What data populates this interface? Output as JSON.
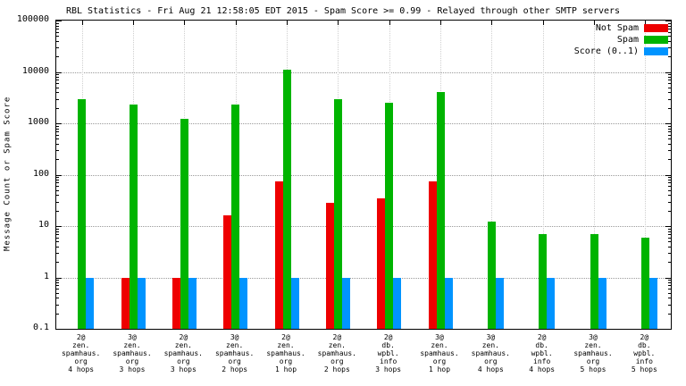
{
  "title": "RBL Statistics - Fri Aug 21 12:58:05 EDT 2015 - Spam Score >= 0.99 - Relayed through other SMTP servers",
  "ylabel": "Message Count or Spam Score",
  "legend": [
    {
      "label": "Not Spam",
      "color": "#ee0000"
    },
    {
      "label": "Spam",
      "color": "#00b400"
    },
    {
      "label": "Score (0..1)",
      "color": "#0094ff"
    }
  ],
  "chart_data": {
    "type": "bar",
    "y_scale": "log",
    "ylim": [
      0.1,
      100000
    ],
    "yticks": [
      "0.1",
      "1",
      "10",
      "100",
      "1000",
      "10000",
      "100000"
    ],
    "grid": true,
    "legend_position": "top-right",
    "title": "RBL Statistics - Fri Aug 21 12:58:05 EDT 2015 - Spam Score >= 0.99 - Relayed through other SMTP servers",
    "xlabel": "",
    "ylabel": "Message Count or Spam Score",
    "categories": [
      [
        "2@",
        "zen.",
        "spamhaus.",
        "org",
        "4 hops"
      ],
      [
        "3@",
        "zen.",
        "spamhaus.",
        "org",
        "3 hops"
      ],
      [
        "2@",
        "zen.",
        "spamhaus.",
        "org",
        "3 hops"
      ],
      [
        "3@",
        "zen.",
        "spamhaus.",
        "org",
        "2 hops"
      ],
      [
        "2@",
        "zen.",
        "spamhaus.",
        "org",
        "1 hop"
      ],
      [
        "2@",
        "zen.",
        "spamhaus.",
        "org",
        "2 hops"
      ],
      [
        "2@",
        "db.",
        "wpbl.",
        "info",
        "3 hops"
      ],
      [
        "3@",
        "zen.",
        "spamhaus.",
        "org",
        "1 hop"
      ],
      [
        "3@",
        "zen.",
        "spamhaus.",
        "org",
        "4 hops"
      ],
      [
        "2@",
        "db.",
        "wpbl.",
        "info",
        "4 hops"
      ],
      [
        "3@",
        "zen.",
        "spamhaus.",
        "org",
        "5 hops"
      ],
      [
        "2@",
        "db.",
        "wpbl.",
        "info",
        "5 hops"
      ]
    ],
    "series": [
      {
        "name": "Not Spam",
        "color": "#ee0000",
        "values": [
          null,
          1,
          1,
          16,
          75,
          28,
          35,
          75,
          null,
          null,
          null,
          null
        ]
      },
      {
        "name": "Spam",
        "color": "#00b400",
        "values": [
          3000,
          2300,
          1200,
          2300,
          11000,
          2900,
          2500,
          4000,
          12,
          7,
          7,
          6
        ]
      },
      {
        "name": "Score (0..1)",
        "color": "#0094ff",
        "values": [
          1,
          1,
          1,
          1,
          1,
          1,
          1,
          1,
          1,
          1,
          1,
          1
        ]
      }
    ]
  }
}
